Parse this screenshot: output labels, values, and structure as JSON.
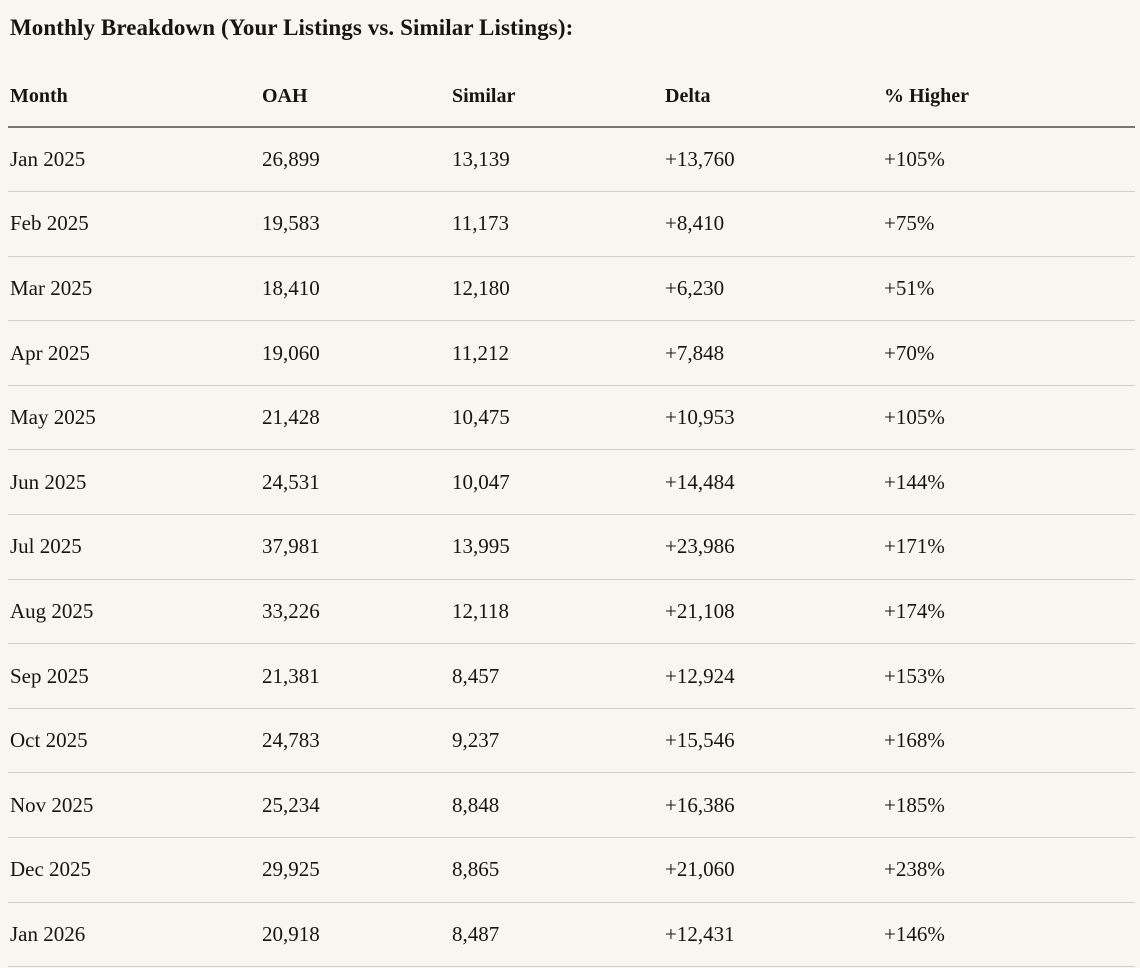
{
  "page": {
    "title": "Monthly Breakdown (Your Listings vs. Similar Listings):",
    "background_color": "#f9f6ef",
    "text_color": "#18150d",
    "header_rule_color": "#7b776e",
    "row_rule_color": "#d1cec5"
  },
  "table": {
    "columns": [
      "Month",
      "OAH",
      "Similar",
      "Delta",
      "% Higher"
    ],
    "rows": [
      [
        "Jan 2025",
        "26,899",
        "13,139",
        "+13,760",
        "+105%"
      ],
      [
        "Feb 2025",
        "19,583",
        "11,173",
        "+8,410",
        "+75%"
      ],
      [
        "Mar 2025",
        "18,410",
        "12,180",
        "+6,230",
        "+51%"
      ],
      [
        "Apr 2025",
        "19,060",
        "11,212",
        "+7,848",
        "+70%"
      ],
      [
        "May 2025",
        "21,428",
        "10,475",
        "+10,953",
        "+105%"
      ],
      [
        "Jun 2025",
        "24,531",
        "10,047",
        "+14,484",
        "+144%"
      ],
      [
        "Jul 2025",
        "37,981",
        "13,995",
        "+23,986",
        "+171%"
      ],
      [
        "Aug 2025",
        "33,226",
        "12,118",
        "+21,108",
        "+174%"
      ],
      [
        "Sep 2025",
        "21,381",
        "8,457",
        "+12,924",
        "+153%"
      ],
      [
        "Oct 2025",
        "24,783",
        "9,237",
        "+15,546",
        "+168%"
      ],
      [
        "Nov 2025",
        "25,234",
        "8,848",
        "+16,386",
        "+185%"
      ],
      [
        "Dec 2025",
        "29,925",
        "8,865",
        "+21,060",
        "+238%"
      ],
      [
        "Jan 2026",
        "20,918",
        "8,487",
        "+12,431",
        "+146%"
      ]
    ]
  },
  "chart_data": {
    "type": "table",
    "title": "Monthly Breakdown (Your Listings vs. Similar Listings):",
    "columns": [
      "Month",
      "OAH",
      "Similar",
      "Delta",
      "% Higher"
    ],
    "months": [
      "Jan 2025",
      "Feb 2025",
      "Mar 2025",
      "Apr 2025",
      "May 2025",
      "Jun 2025",
      "Jul 2025",
      "Aug 2025",
      "Sep 2025",
      "Oct 2025",
      "Nov 2025",
      "Dec 2025",
      "Jan 2026"
    ],
    "series": [
      {
        "name": "OAH",
        "values": [
          26899,
          19583,
          18410,
          19060,
          21428,
          24531,
          37981,
          33226,
          21381,
          24783,
          25234,
          29925,
          20918
        ]
      },
      {
        "name": "Similar",
        "values": [
          13139,
          11173,
          12180,
          11212,
          10475,
          10047,
          13995,
          12118,
          8457,
          9237,
          8848,
          8865,
          8487
        ]
      },
      {
        "name": "Delta",
        "values": [
          13760,
          8410,
          6230,
          7848,
          10953,
          14484,
          23986,
          21108,
          12924,
          15546,
          16386,
          21060,
          12431
        ]
      },
      {
        "name": "% Higher",
        "values": [
          105,
          75,
          51,
          70,
          105,
          144,
          171,
          174,
          153,
          168,
          185,
          238,
          146
        ]
      }
    ]
  }
}
